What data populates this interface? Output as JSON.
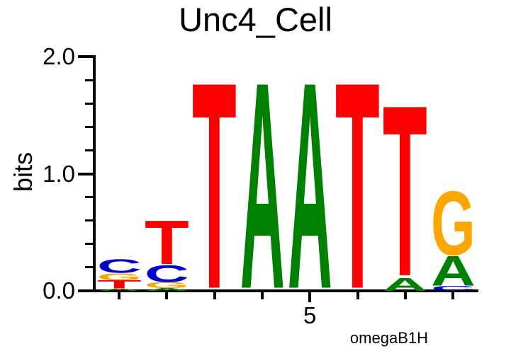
{
  "figure": {
    "title": "Unc4_Cell",
    "y_axis_label": "bits",
    "fineprint": "omegaB1H"
  },
  "chart_data": {
    "type": "sequence_logo",
    "title": "Unc4_Cell",
    "ylabel": "bits",
    "ylim": [
      0,
      2.0
    ],
    "y_major_ticks": [
      0.0,
      1.0,
      2.0
    ],
    "y_major_tick_labels": [
      "0.0",
      "1.0",
      "2.0"
    ],
    "y_minor_tick_step": 0.2,
    "x_tick_label": {
      "position": 5,
      "label": "5"
    },
    "num_positions": 8,
    "annotation": "omegaB1H",
    "base_colors": {
      "A": "#008000",
      "C": "#0000CC",
      "G": "#FFA500",
      "T": "#FF0000"
    },
    "letters_order": "bottom-to-top",
    "positions": [
      {
        "position": 1,
        "letters": [
          {
            "base": "A",
            "bits": 0.02
          },
          {
            "base": "T",
            "bits": 0.07
          },
          {
            "base": "G",
            "bits": 0.06
          },
          {
            "base": "C",
            "bits": 0.12
          }
        ]
      },
      {
        "position": 2,
        "letters": [
          {
            "base": "A",
            "bits": 0.025
          },
          {
            "base": "G",
            "bits": 0.05
          },
          {
            "base": "C",
            "bits": 0.15
          },
          {
            "base": "T",
            "bits": 0.38
          }
        ]
      },
      {
        "position": 3,
        "letters": [
          {
            "base": "T",
            "bits": 1.8
          }
        ]
      },
      {
        "position": 4,
        "letters": [
          {
            "base": "A",
            "bits": 1.8
          }
        ]
      },
      {
        "position": 5,
        "letters": [
          {
            "base": "A",
            "bits": 1.8
          }
        ]
      },
      {
        "position": 6,
        "letters": [
          {
            "base": "T",
            "bits": 1.8
          }
        ]
      },
      {
        "position": 7,
        "letters": [
          {
            "base": "A",
            "bits": 0.11
          },
          {
            "base": "T",
            "bits": 1.49
          }
        ]
      },
      {
        "position": 8,
        "letters": [
          {
            "base": "C",
            "bits": 0.04
          },
          {
            "base": "A",
            "bits": 0.26
          },
          {
            "base": "G",
            "bits": 0.56
          }
        ]
      }
    ]
  }
}
